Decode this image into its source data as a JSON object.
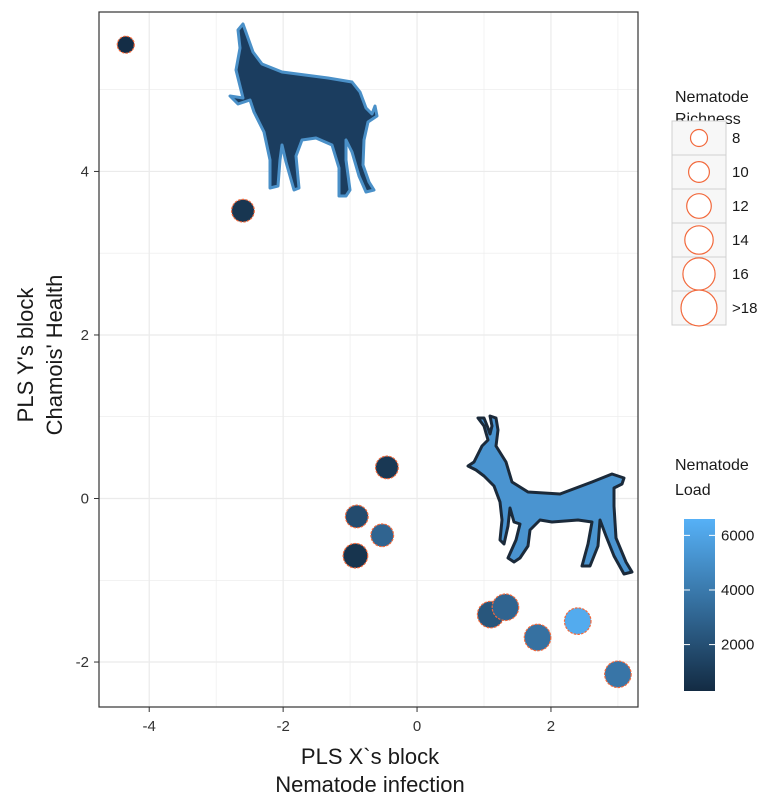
{
  "chart_data": {
    "type": "scatter",
    "xlabel_lines": [
      "PLS X`s block",
      "Nematode infection"
    ],
    "ylabel_lines": [
      "PLS Y's block",
      "Chamois' Health"
    ],
    "xlim": [
      -4.75,
      3.3
    ],
    "ylim": [
      -2.55,
      5.95
    ],
    "x_ticks": [
      -4,
      -2,
      0,
      2
    ],
    "y_ticks": [
      -2,
      0,
      2,
      4
    ],
    "grid": true,
    "legend_placement": "right",
    "colors": {
      "point_outline": "#f2693c",
      "load_low": "#132b43",
      "load_high": "#56b1f7",
      "panel_border": "#333333",
      "grid": "#ebebeb",
      "silhouette_dark": "#1b3d5f",
      "silhouette_light": "#4a94d0"
    },
    "points": [
      {
        "x": -4.35,
        "y": 5.55,
        "richness": 8,
        "load": 400
      },
      {
        "x": -2.6,
        "y": 3.52,
        "richness": 11,
        "load": 800
      },
      {
        "x": -0.45,
        "y": 0.38,
        "richness": 11,
        "load": 900
      },
      {
        "x": -0.9,
        "y": -0.22,
        "richness": 11,
        "load": 1800
      },
      {
        "x": -0.52,
        "y": -0.45,
        "richness": 11,
        "load": 3000
      },
      {
        "x": -0.92,
        "y": -0.7,
        "richness": 12,
        "load": 700
      },
      {
        "x": 1.1,
        "y": -1.42,
        "richness": 13,
        "load": 2300
      },
      {
        "x": 1.32,
        "y": -1.33,
        "richness": 13,
        "load": 3000
      },
      {
        "x": 1.8,
        "y": -1.7,
        "richness": 13,
        "load": 3600
      },
      {
        "x": 2.4,
        "y": -1.5,
        "richness": 13,
        "load": 6300
      },
      {
        "x": 3.0,
        "y": -2.15,
        "richness": 13,
        "load": 3800
      }
    ],
    "size_legend": {
      "title_lines": [
        "Nematode",
        "Richness"
      ],
      "entries": [
        {
          "label": "8",
          "value": 8
        },
        {
          "label": "10",
          "value": 10
        },
        {
          "label": "12",
          "value": 12
        },
        {
          "label": "14",
          "value": 14
        },
        {
          "label": "16",
          "value": 16
        },
        {
          "label": ">18",
          "value": 18
        }
      ]
    },
    "color_legend": {
      "title_lines": [
        "Nematode",
        "Load"
      ],
      "min": 300,
      "max": 6600,
      "ticks": [
        {
          "label": "2000",
          "value": 2000
        },
        {
          "label": "4000",
          "value": 4000
        },
        {
          "label": "6000",
          "value": 6000
        }
      ]
    }
  }
}
